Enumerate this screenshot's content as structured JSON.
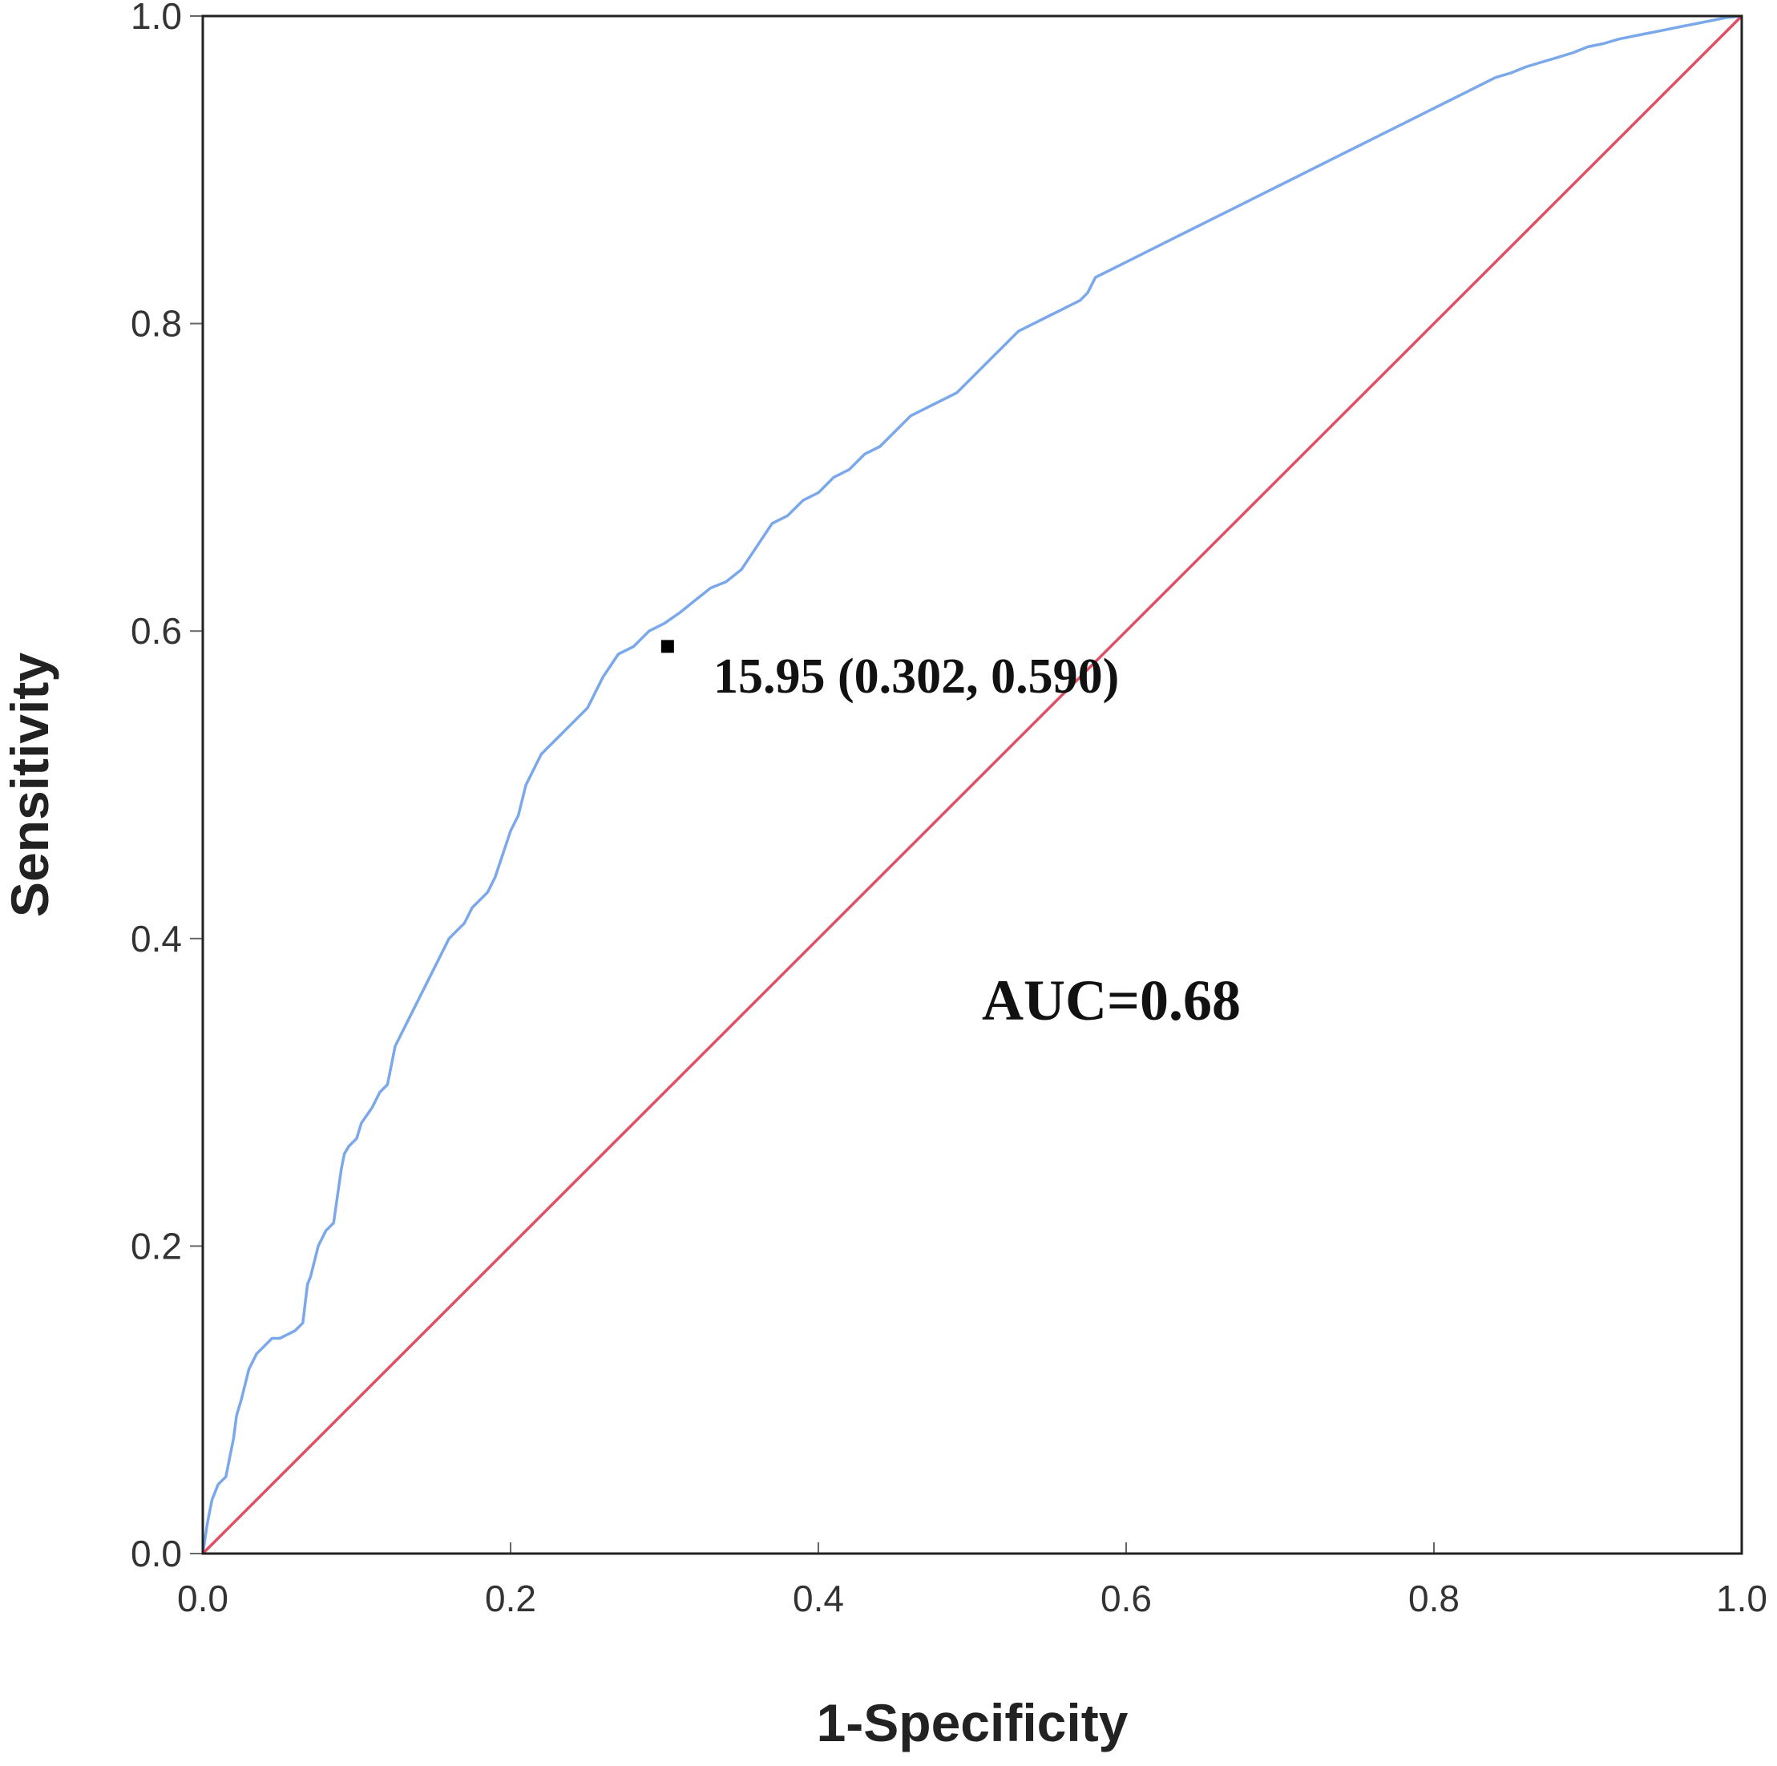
{
  "chart_data": {
    "type": "line",
    "xlabel": "1-Specificity",
    "ylabel": "Sensitivity",
    "xlim": [
      0,
      1
    ],
    "ylim": [
      0,
      1
    ],
    "x_ticks": [
      "0.0",
      "0.2",
      "0.4",
      "0.6",
      "0.8",
      "1.0"
    ],
    "y_ticks": [
      "0.0",
      "0.2",
      "0.4",
      "0.6",
      "0.8",
      "1.0"
    ],
    "grid": false,
    "legend": "none",
    "series": [
      {
        "color": "#7aa8ea",
        "x": [
          0.0,
          0.003,
          0.006,
          0.01,
          0.015,
          0.02,
          0.022,
          0.025,
          0.03,
          0.035,
          0.04,
          0.045,
          0.05,
          0.06,
          0.065,
          0.068,
          0.07,
          0.075,
          0.08,
          0.085,
          0.09,
          0.092,
          0.095,
          0.1,
          0.103,
          0.11,
          0.115,
          0.12,
          0.125,
          0.13,
          0.135,
          0.14,
          0.145,
          0.15,
          0.155,
          0.16,
          0.165,
          0.17,
          0.175,
          0.18,
          0.185,
          0.19,
          0.2,
          0.205,
          0.21,
          0.215,
          0.22,
          0.225,
          0.23,
          0.235,
          0.24,
          0.25,
          0.26,
          0.27,
          0.28,
          0.29,
          0.3,
          0.31,
          0.32,
          0.33,
          0.34,
          0.35,
          0.36,
          0.37,
          0.38,
          0.39,
          0.4,
          0.41,
          0.42,
          0.43,
          0.44,
          0.45,
          0.46,
          0.47,
          0.48,
          0.49,
          0.5,
          0.51,
          0.52,
          0.53,
          0.54,
          0.55,
          0.56,
          0.57,
          0.575,
          0.58,
          0.59,
          0.6,
          0.61,
          0.62,
          0.63,
          0.64,
          0.65,
          0.66,
          0.67,
          0.68,
          0.69,
          0.7,
          0.71,
          0.72,
          0.73,
          0.74,
          0.75,
          0.76,
          0.77,
          0.78,
          0.79,
          0.8,
          0.81,
          0.82,
          0.83,
          0.84,
          0.85,
          0.86,
          0.87,
          0.88,
          0.89,
          0.9,
          0.91,
          0.92,
          0.93,
          0.94,
          0.95,
          0.96,
          0.97,
          0.98,
          0.99,
          1.0
        ],
        "y": [
          0.0,
          0.02,
          0.035,
          0.045,
          0.05,
          0.075,
          0.09,
          0.1,
          0.12,
          0.13,
          0.135,
          0.14,
          0.14,
          0.145,
          0.15,
          0.175,
          0.18,
          0.2,
          0.21,
          0.215,
          0.25,
          0.26,
          0.265,
          0.27,
          0.28,
          0.29,
          0.3,
          0.305,
          0.33,
          0.34,
          0.35,
          0.36,
          0.37,
          0.38,
          0.39,
          0.4,
          0.405,
          0.41,
          0.42,
          0.425,
          0.43,
          0.44,
          0.47,
          0.48,
          0.5,
          0.51,
          0.52,
          0.525,
          0.53,
          0.535,
          0.54,
          0.55,
          0.57,
          0.585,
          0.59,
          0.6,
          0.605,
          0.612,
          0.62,
          0.628,
          0.632,
          0.64,
          0.655,
          0.67,
          0.675,
          0.685,
          0.69,
          0.7,
          0.705,
          0.715,
          0.72,
          0.73,
          0.74,
          0.745,
          0.75,
          0.755,
          0.765,
          0.775,
          0.785,
          0.795,
          0.8,
          0.805,
          0.81,
          0.815,
          0.82,
          0.83,
          0.835,
          0.84,
          0.845,
          0.85,
          0.855,
          0.86,
          0.865,
          0.87,
          0.875,
          0.88,
          0.885,
          0.89,
          0.895,
          0.9,
          0.905,
          0.91,
          0.915,
          0.92,
          0.925,
          0.93,
          0.935,
          0.94,
          0.945,
          0.95,
          0.955,
          0.96,
          0.963,
          0.967,
          0.97,
          0.973,
          0.976,
          0.98,
          0.982,
          0.985,
          0.987,
          0.989,
          0.991,
          0.993,
          0.995,
          0.997,
          0.999,
          1.0
        ]
      },
      {
        "color": "#e04f63",
        "x": [
          0,
          1
        ],
        "y": [
          0,
          1
        ]
      }
    ],
    "cutoff_point": {
      "x": 0.302,
      "y": 0.59
    },
    "annotations": {
      "cutoff": "15.95 (0.302, 0.590)",
      "auc": "AUC=0.68"
    }
  }
}
